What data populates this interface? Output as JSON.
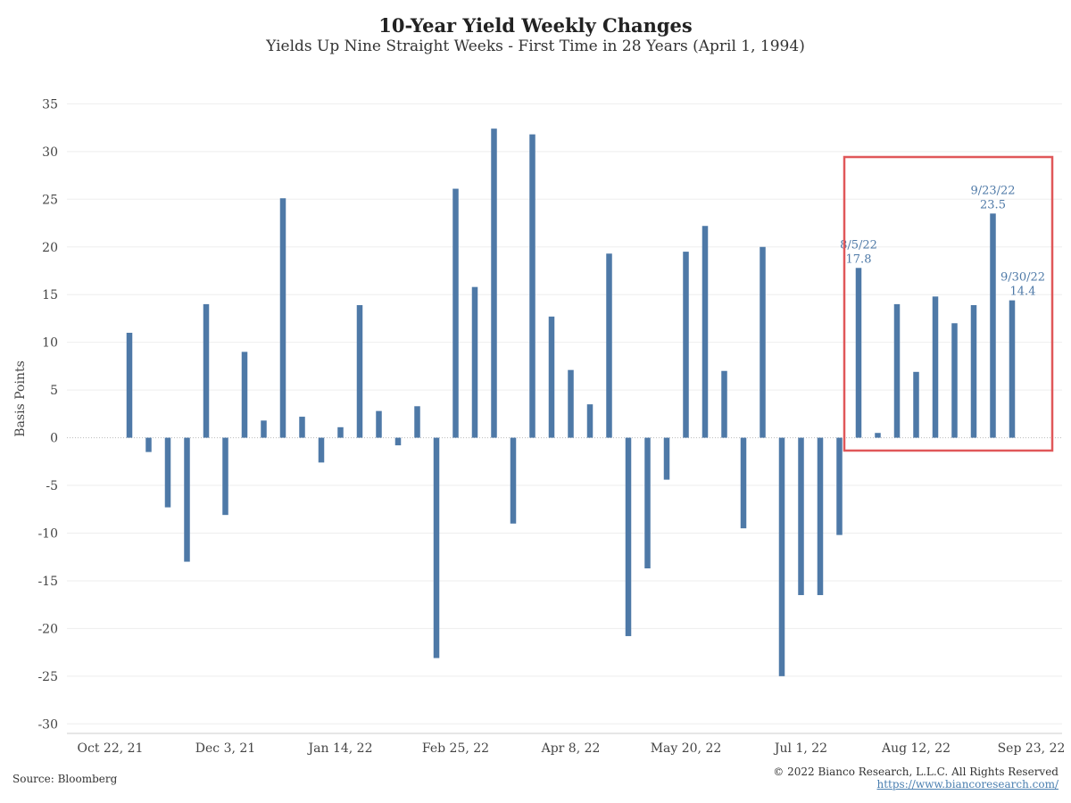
{
  "chart_data": {
    "type": "bar",
    "title": "10-Year Yield Weekly Changes",
    "subtitle": "Yields Up Nine Straight Weeks - First Time in 28 Years (April 1, 1994)",
    "ylabel": "Basis Points",
    "ylim": [
      -31,
      37
    ],
    "yticks": [
      35,
      30,
      25,
      20,
      15,
      10,
      5,
      0,
      -5,
      -10,
      -15,
      -20,
      -25,
      -30
    ],
    "xtick_labels": [
      "Oct 22, 21",
      "Dec 3, 21",
      "Jan 14, 22",
      "Feb 25, 22",
      "Apr 8, 22",
      "May 20, 22",
      "Jul 1, 22",
      "Aug 12, 22",
      "Sep 23, 22"
    ],
    "values": [
      11.0,
      -1.5,
      -7.3,
      -13.0,
      14.0,
      -8.1,
      9.0,
      1.8,
      25.1,
      2.2,
      -2.6,
      1.1,
      13.9,
      2.8,
      -0.8,
      3.3,
      -23.1,
      26.1,
      15.8,
      32.4,
      -9.0,
      31.8,
      12.7,
      7.1,
      3.5,
      19.3,
      -20.8,
      -13.7,
      -4.4,
      19.5,
      22.2,
      7.0,
      -9.5,
      20.0,
      -25.0,
      -16.5,
      -16.5,
      -10.2,
      17.8,
      0.5,
      14.0,
      6.9,
      14.8,
      12.0,
      13.9,
      23.5,
      14.4
    ],
    "annotations": [
      {
        "date": "8/5/22",
        "value": "17.8"
      },
      {
        "date": "9/23/22",
        "value": "23.5"
      },
      {
        "date": "9/30/22",
        "value": "14.4"
      }
    ],
    "grid": true,
    "bar_color": "#4e79a7",
    "highlight_box_color": "#e05759"
  },
  "footer": {
    "source": "Source: Bloomberg",
    "copyright": "© 2022 Bianco Research, L.L.C. All Rights Reserved",
    "url": "https://www.biancoresearch.com/"
  }
}
